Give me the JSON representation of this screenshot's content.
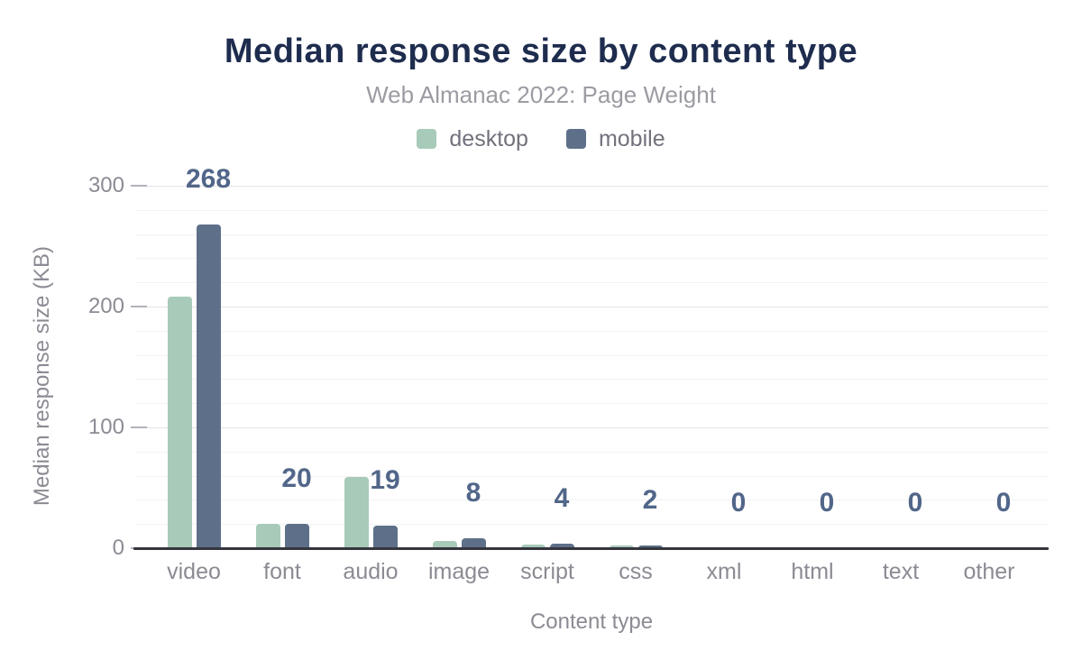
{
  "header": {
    "title": "Median response size by content type",
    "subtitle": "Web Almanac 2022: Page Weight"
  },
  "legend": [
    {
      "label": "desktop",
      "color": "#a8cab9"
    },
    {
      "label": "mobile",
      "color": "#5e7089"
    }
  ],
  "axes": {
    "xlabel": "Content type",
    "ylabel": "Median response size (KB)"
  },
  "chart_data": {
    "type": "bar",
    "title": "Median response size by content type",
    "subtitle": "Web Almanac 2022: Page Weight",
    "categories": [
      "video",
      "font",
      "audio",
      "image",
      "script",
      "css",
      "xml",
      "html",
      "text",
      "other"
    ],
    "series": [
      {
        "name": "desktop",
        "color": "#a8cab9",
        "values": [
          208,
          20,
          59,
          6,
          3,
          2,
          0,
          0,
          0,
          0
        ]
      },
      {
        "name": "mobile",
        "color": "#5e7089",
        "values": [
          268,
          20,
          19,
          8,
          4,
          2,
          0,
          0,
          0,
          0
        ]
      }
    ],
    "data_labels": {
      "series": "mobile",
      "values": [
        "268",
        "20",
        "19",
        "8",
        "4",
        "2",
        "0",
        "0",
        "0",
        "0"
      ]
    },
    "xlabel": "Content type",
    "ylabel": "Median response size (KB)",
    "y_ticks": [
      0,
      100,
      200,
      300
    ],
    "ylim": [
      0,
      300
    ],
    "grid_minor_step": 20,
    "grid": true,
    "legend_position": "top",
    "label_color": "#516689"
  }
}
